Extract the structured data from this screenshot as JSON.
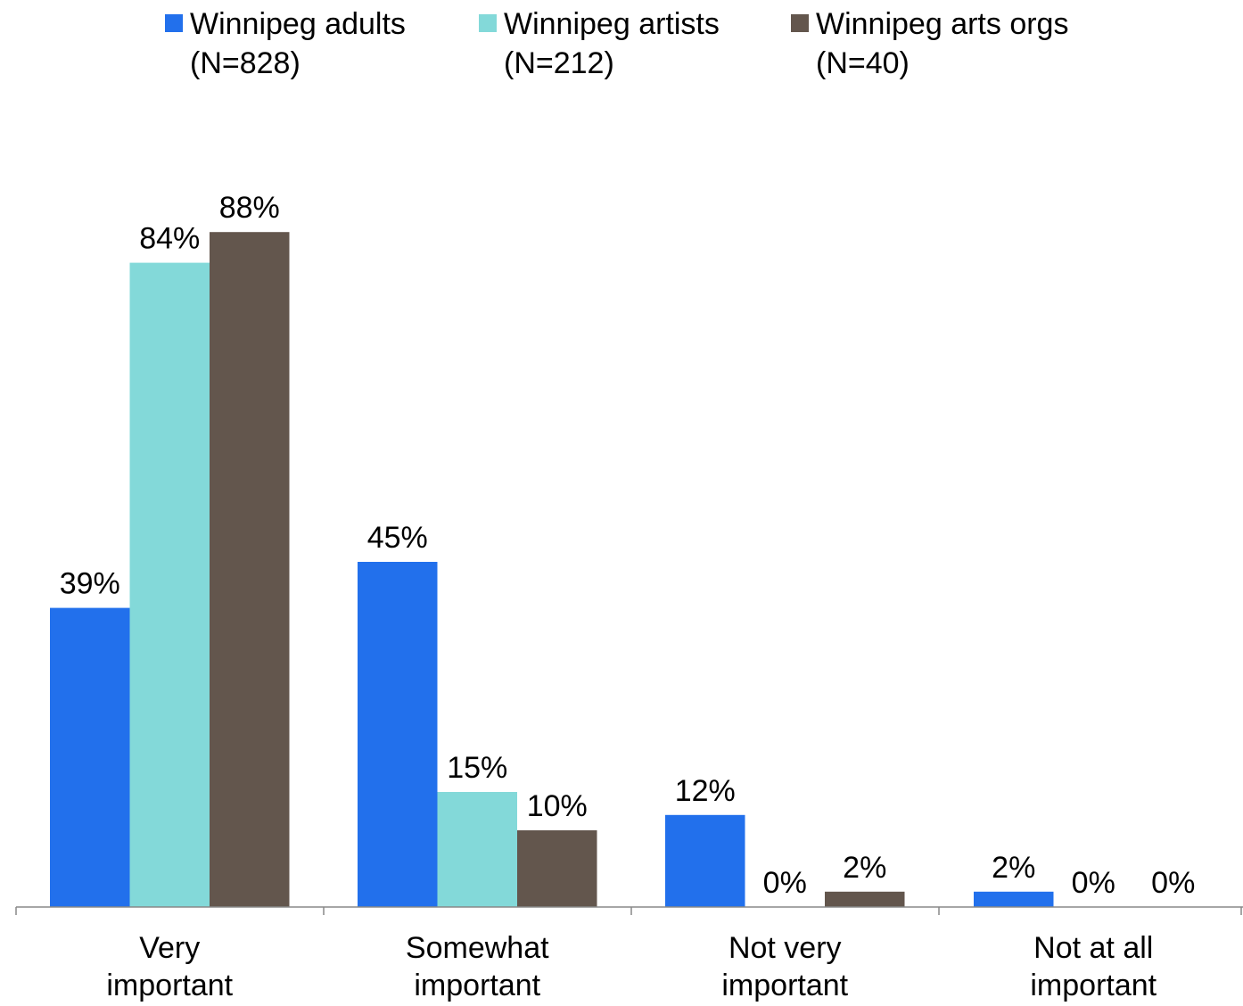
{
  "chart_data": {
    "type": "bar",
    "categories": [
      [
        "Very",
        "important"
      ],
      [
        "Somewhat",
        "important"
      ],
      [
        "Not very",
        "important"
      ],
      [
        "Not at all",
        "important"
      ]
    ],
    "series": [
      {
        "name": "Winnipeg adults",
        "name_line2": "(N=828)",
        "color": "#2270ec",
        "values": [
          39,
          45,
          12,
          2
        ],
        "labels": [
          "39%",
          "45%",
          "12%",
          "2%"
        ]
      },
      {
        "name": "Winnipeg artists",
        "name_line2": "(N=212)",
        "color": "#83d9d9",
        "values": [
          84,
          15,
          0,
          0
        ],
        "labels": [
          "84%",
          "15%",
          "0%",
          "0%"
        ]
      },
      {
        "name": "Winnipeg arts orgs",
        "name_line2": "(N=40)",
        "color": "#63564d",
        "values": [
          88,
          10,
          2,
          0
        ],
        "labels": [
          "88%",
          "10%",
          "2%",
          "0%"
        ]
      }
    ],
    "unit": "%",
    "ylim": [
      0,
      100
    ],
    "grid": false,
    "legend": "top"
  }
}
